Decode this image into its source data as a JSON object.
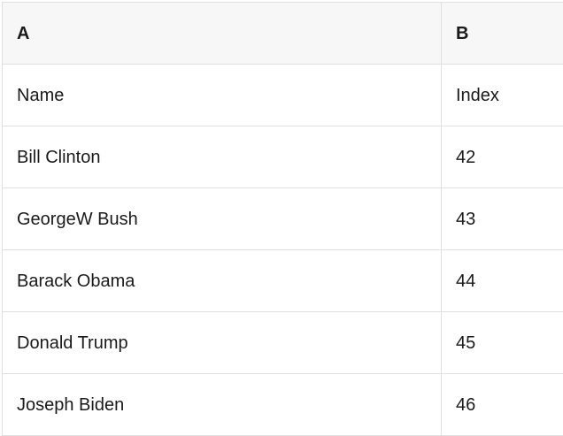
{
  "table": {
    "column_headers": {
      "a": "A",
      "b": "B"
    },
    "rows": [
      {
        "a": "Name",
        "b": "Index"
      },
      {
        "a": "Bill Clinton",
        "b": "42"
      },
      {
        "a": "GeorgeW Bush",
        "b": "43"
      },
      {
        "a": "Barack Obama",
        "b": "44"
      },
      {
        "a": "Donald Trump",
        "b": "45"
      },
      {
        "a": "Joseph Biden",
        "b": "46"
      }
    ]
  },
  "colors": {
    "header_background": "#f7f7f7",
    "row_background": "#ffffff",
    "border": "#e0e0e0",
    "text": "#1a1a1a"
  }
}
